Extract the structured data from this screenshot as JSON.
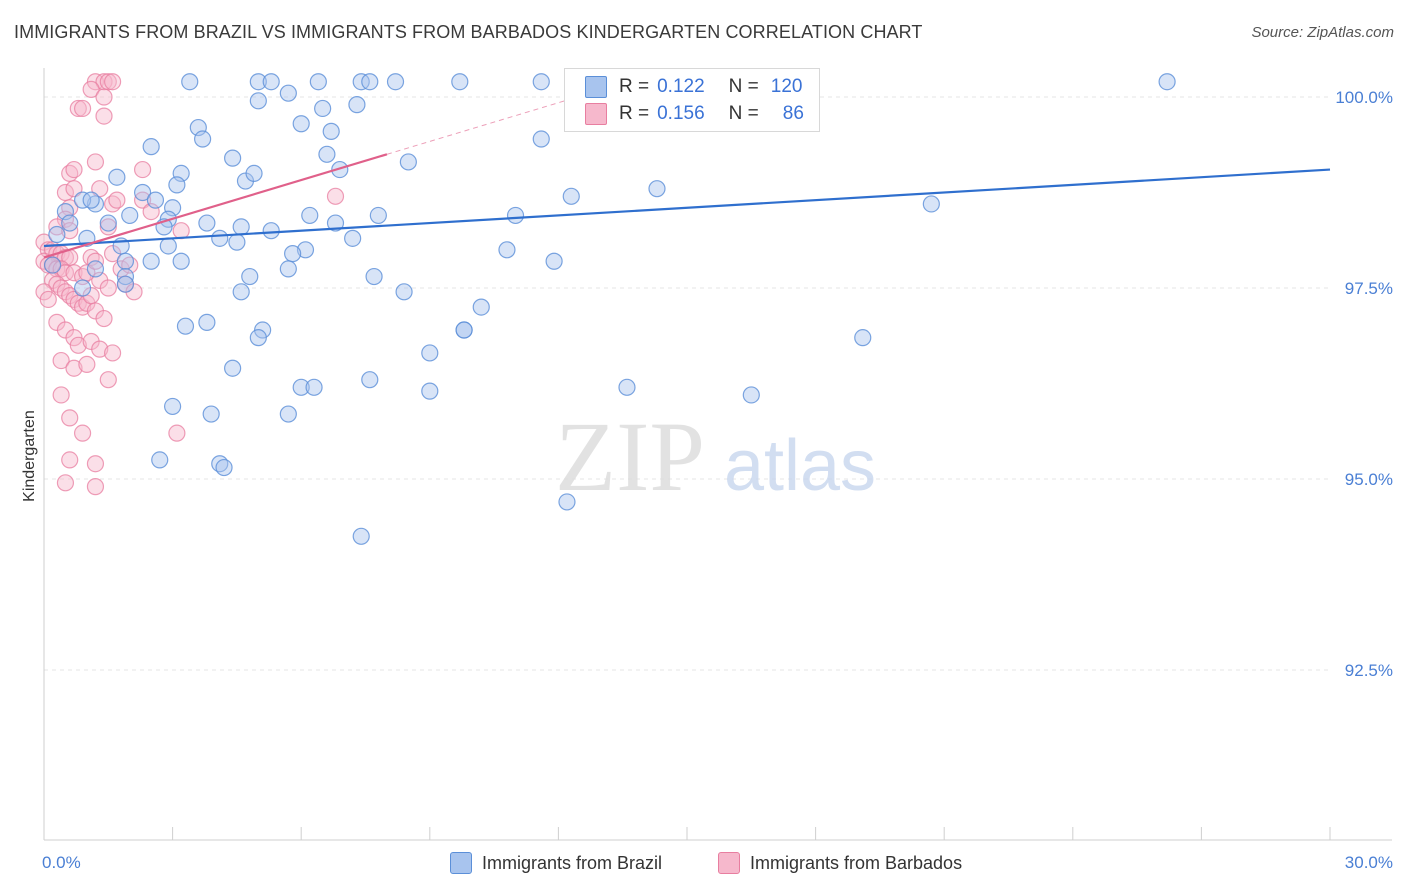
{
  "title": "IMMIGRANTS FROM BRAZIL VS IMMIGRANTS FROM BARBADOS KINDERGARTEN CORRELATION CHART",
  "source": "Source: ZipAtlas.com",
  "watermark": {
    "zip": "ZIP",
    "atlas": "atlas"
  },
  "colors": {
    "brazil_fill": "#a8c4ee",
    "brazil_stroke": "#5b8fd8",
    "brazil_line": "#2f6fce",
    "barbados_fill": "#f6b8cc",
    "barbados_stroke": "#e87ea0",
    "barbados_line": "#e0608a",
    "tick_label": "#4a7fd4",
    "grid": "#e4e4e4"
  },
  "legend": {
    "brazil": {
      "r_label": "R =",
      "r_value": "0.122",
      "n_label": "N =",
      "n_value": "120"
    },
    "barbados": {
      "r_label": "R =",
      "r_value": "0.156",
      "n_label": "N =",
      "n_value": "86"
    }
  },
  "chart_data": {
    "type": "scatter",
    "title": "IMMIGRANTS FROM BRAZIL VS IMMIGRANTS FROM BARBADOS KINDERGARTEN CORRELATION CHART",
    "xlabel": "",
    "ylabel": "Kindergarten",
    "xlim": [
      0,
      30
    ],
    "ylim": [
      90.0,
      100.6
    ],
    "x_tick_labels": [
      "0.0%",
      "30.0%"
    ],
    "y_ticks": [
      92.5,
      95.0,
      97.5,
      100.0
    ],
    "y_tick_labels": [
      "92.5%",
      "95.0%",
      "97.5%",
      "100.0%"
    ],
    "grid": true,
    "series": [
      {
        "name": "Immigrants from Brazil",
        "r": 0.122,
        "n": 120,
        "trend": {
          "x": [
            0.0,
            30.0
          ],
          "y": [
            98.05,
            99.05
          ]
        },
        "points": [
          [
            3.4,
            100.2
          ],
          [
            5.0,
            100.2
          ],
          [
            5.3,
            100.2
          ],
          [
            6.4,
            100.2
          ],
          [
            7.4,
            100.2
          ],
          [
            7.6,
            100.2
          ],
          [
            8.2,
            100.2
          ],
          [
            9.7,
            100.2
          ],
          [
            11.6,
            100.2
          ],
          [
            14.0,
            100.2
          ],
          [
            15.5,
            100.2
          ],
          [
            26.2,
            100.2
          ],
          [
            5.7,
            100.05
          ],
          [
            5.0,
            99.95
          ],
          [
            6.5,
            99.85
          ],
          [
            7.3,
            99.9
          ],
          [
            3.6,
            99.6
          ],
          [
            3.7,
            99.45
          ],
          [
            6.0,
            99.65
          ],
          [
            6.7,
            99.55
          ],
          [
            2.5,
            99.35
          ],
          [
            4.4,
            99.2
          ],
          [
            6.6,
            99.25
          ],
          [
            8.5,
            99.15
          ],
          [
            11.6,
            99.45
          ],
          [
            1.7,
            98.95
          ],
          [
            3.2,
            99.0
          ],
          [
            4.7,
            98.9
          ],
          [
            3.1,
            98.85
          ],
          [
            4.9,
            99.0
          ],
          [
            6.9,
            99.05
          ],
          [
            2.3,
            98.75
          ],
          [
            2.6,
            98.65
          ],
          [
            3.0,
            98.55
          ],
          [
            1.2,
            98.6
          ],
          [
            0.5,
            98.5
          ],
          [
            0.9,
            98.65
          ],
          [
            1.1,
            98.65
          ],
          [
            2.0,
            98.45
          ],
          [
            2.9,
            98.4
          ],
          [
            3.8,
            98.35
          ],
          [
            4.6,
            98.3
          ],
          [
            5.3,
            98.25
          ],
          [
            6.2,
            98.45
          ],
          [
            6.8,
            98.35
          ],
          [
            7.8,
            98.45
          ],
          [
            11.0,
            98.45
          ],
          [
            12.3,
            98.7
          ],
          [
            14.3,
            98.8
          ],
          [
            20.7,
            98.6
          ],
          [
            0.6,
            98.35
          ],
          [
            1.5,
            98.35
          ],
          [
            2.8,
            98.3
          ],
          [
            0.3,
            98.2
          ],
          [
            1.0,
            98.15
          ],
          [
            1.8,
            98.05
          ],
          [
            2.9,
            98.05
          ],
          [
            4.1,
            98.15
          ],
          [
            4.5,
            98.1
          ],
          [
            6.1,
            98.0
          ],
          [
            7.2,
            98.15
          ],
          [
            10.8,
            98.0
          ],
          [
            5.8,
            97.95
          ],
          [
            0.2,
            97.8
          ],
          [
            1.2,
            97.75
          ],
          [
            1.9,
            97.85
          ],
          [
            2.5,
            97.85
          ],
          [
            3.2,
            97.85
          ],
          [
            4.8,
            97.65
          ],
          [
            5.7,
            97.75
          ],
          [
            11.9,
            97.85
          ],
          [
            1.9,
            97.65
          ],
          [
            1.9,
            97.55
          ],
          [
            0.9,
            97.5
          ],
          [
            4.6,
            97.45
          ],
          [
            7.7,
            97.65
          ],
          [
            8.4,
            97.45
          ],
          [
            10.2,
            97.25
          ],
          [
            3.8,
            97.05
          ],
          [
            3.3,
            97.0
          ],
          [
            5.1,
            96.95
          ],
          [
            5.0,
            96.85
          ],
          [
            9.0,
            96.65
          ],
          [
            9.8,
            96.95
          ],
          [
            9.8,
            96.95
          ],
          [
            19.1,
            96.85
          ],
          [
            4.4,
            96.45
          ],
          [
            6.0,
            96.2
          ],
          [
            6.3,
            96.2
          ],
          [
            7.6,
            96.3
          ],
          [
            9.0,
            96.15
          ],
          [
            13.6,
            96.2
          ],
          [
            16.5,
            96.1
          ],
          [
            3.0,
            95.95
          ],
          [
            3.9,
            95.85
          ],
          [
            5.7,
            95.85
          ],
          [
            2.7,
            95.25
          ],
          [
            4.1,
            95.2
          ],
          [
            4.2,
            95.15
          ],
          [
            12.2,
            94.7
          ],
          [
            7.4,
            94.25
          ]
        ]
      },
      {
        "name": "Immigrants from Barbados",
        "r": 0.156,
        "n": 86,
        "trend": {
          "x": [
            0.0,
            8.0
          ],
          "y": [
            97.9,
            99.25
          ]
        },
        "points": [
          [
            1.2,
            100.2
          ],
          [
            1.4,
            100.2
          ],
          [
            1.5,
            100.2
          ],
          [
            1.6,
            100.2
          ],
          [
            1.1,
            100.1
          ],
          [
            1.4,
            100.0
          ],
          [
            0.8,
            99.85
          ],
          [
            0.9,
            99.85
          ],
          [
            1.4,
            99.75
          ],
          [
            0.6,
            99.0
          ],
          [
            0.7,
            99.05
          ],
          [
            1.2,
            99.15
          ],
          [
            2.3,
            99.05
          ],
          [
            0.5,
            98.75
          ],
          [
            0.7,
            98.8
          ],
          [
            1.3,
            98.8
          ],
          [
            1.6,
            98.6
          ],
          [
            1.7,
            98.65
          ],
          [
            0.6,
            98.55
          ],
          [
            0.5,
            98.4
          ],
          [
            0.3,
            98.3
          ],
          [
            0.6,
            98.25
          ],
          [
            1.5,
            98.3
          ],
          [
            2.3,
            98.65
          ],
          [
            2.5,
            98.5
          ],
          [
            3.2,
            98.25
          ],
          [
            6.8,
            98.7
          ],
          [
            0.0,
            98.1
          ],
          [
            0.1,
            98.0
          ],
          [
            0.2,
            98.0
          ],
          [
            0.3,
            97.95
          ],
          [
            0.4,
            97.95
          ],
          [
            0.5,
            97.9
          ],
          [
            0.6,
            97.9
          ],
          [
            0.0,
            97.85
          ],
          [
            0.1,
            97.8
          ],
          [
            0.2,
            97.8
          ],
          [
            0.3,
            97.75
          ],
          [
            0.4,
            97.75
          ],
          [
            0.5,
            97.7
          ],
          [
            0.7,
            97.7
          ],
          [
            0.9,
            97.65
          ],
          [
            1.0,
            97.7
          ],
          [
            1.1,
            97.9
          ],
          [
            1.2,
            97.85
          ],
          [
            1.6,
            97.95
          ],
          [
            1.8,
            97.75
          ],
          [
            2.0,
            97.8
          ],
          [
            1.3,
            97.6
          ],
          [
            1.5,
            97.5
          ],
          [
            1.9,
            97.55
          ],
          [
            2.1,
            97.45
          ],
          [
            0.2,
            97.6
          ],
          [
            0.3,
            97.55
          ],
          [
            0.4,
            97.5
          ],
          [
            0.5,
            97.45
          ],
          [
            0.6,
            97.4
          ],
          [
            0.7,
            97.35
          ],
          [
            0.8,
            97.3
          ],
          [
            0.9,
            97.25
          ],
          [
            1.0,
            97.3
          ],
          [
            1.1,
            97.4
          ],
          [
            1.2,
            97.2
          ],
          [
            1.4,
            97.1
          ],
          [
            0.0,
            97.45
          ],
          [
            0.1,
            97.35
          ],
          [
            0.3,
            97.05
          ],
          [
            0.5,
            96.95
          ],
          [
            0.7,
            96.85
          ],
          [
            0.8,
            96.75
          ],
          [
            1.1,
            96.8
          ],
          [
            1.3,
            96.7
          ],
          [
            1.6,
            96.65
          ],
          [
            0.4,
            96.55
          ],
          [
            0.7,
            96.45
          ],
          [
            1.0,
            96.5
          ],
          [
            1.5,
            96.3
          ],
          [
            0.4,
            96.1
          ],
          [
            0.6,
            95.8
          ],
          [
            0.9,
            95.6
          ],
          [
            3.1,
            95.6
          ],
          [
            0.6,
            95.25
          ],
          [
            1.2,
            95.2
          ],
          [
            0.5,
            94.95
          ],
          [
            1.2,
            94.9
          ]
        ]
      }
    ]
  },
  "bottom_legend": {
    "brazil_label": "Immigrants from Brazil",
    "barbados_label": "Immigrants from Barbados"
  }
}
